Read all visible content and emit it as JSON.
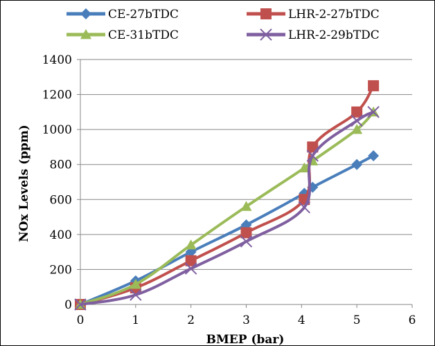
{
  "chart_data": {
    "type": "line",
    "title": "",
    "xlabel": "BMEP (bar)",
    "ylabel": "NOx Levels (ppm)",
    "xlim": [
      0,
      6
    ],
    "ylim": [
      0,
      1400
    ],
    "xticks": [
      0,
      1,
      2,
      3,
      4,
      5,
      6
    ],
    "yticks": [
      0,
      200,
      400,
      600,
      800,
      1000,
      1200,
      1400
    ],
    "grid": "horizontal",
    "legend_position": "top",
    "series": [
      {
        "name": "CE-27bTDC",
        "color": "#4a7ebb",
        "marker": "diamond",
        "x": [
          0,
          1,
          2,
          3,
          4.05,
          4.2,
          5,
          5.3
        ],
        "y": [
          0,
          135,
          300,
          455,
          635,
          670,
          800,
          850
        ]
      },
      {
        "name": "LHR-2-27bTDC",
        "color": "#c0504d",
        "marker": "square",
        "x": [
          0,
          1,
          2,
          3,
          4.05,
          4.2,
          5,
          5.3
        ],
        "y": [
          0,
          95,
          250,
          410,
          600,
          900,
          1100,
          1250
        ]
      },
      {
        "name": "CE-31bTDC",
        "color": "#9bbb59",
        "marker": "triangle",
        "x": [
          0,
          1,
          2,
          3,
          4.05,
          4.2,
          5,
          5.3
        ],
        "y": [
          0,
          115,
          340,
          560,
          780,
          820,
          1000,
          1100
        ]
      },
      {
        "name": "LHR-2-29bTDC",
        "color": "#7f5f9f",
        "marker": "x",
        "x": [
          0,
          1,
          2,
          3,
          4.05,
          4.2,
          5,
          5.3
        ],
        "y": [
          0,
          55,
          205,
          360,
          555,
          850,
          1050,
          1100
        ]
      }
    ]
  }
}
